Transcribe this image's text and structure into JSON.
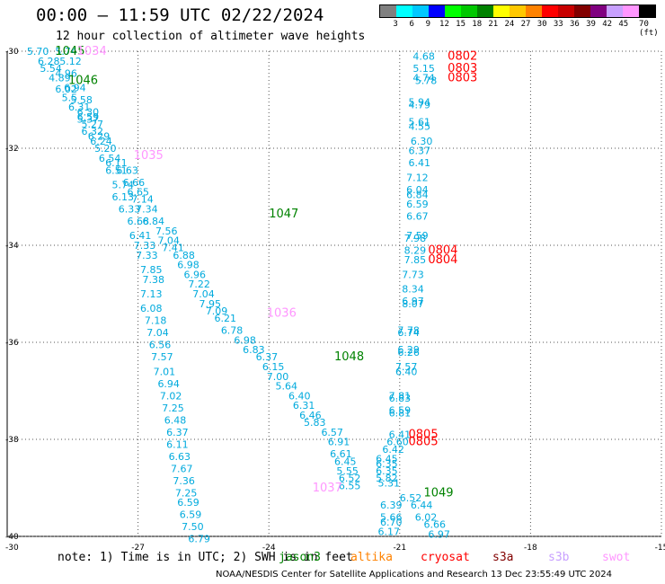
{
  "title": "00:00 – 11:59 UTC 02/22/2024",
  "subtitle": "12 hour collection of altimeter wave heights",
  "colorbar": {
    "colors": [
      "#808080",
      "#00ffff",
      "#00c8ff",
      "#0000ff",
      "#00ff00",
      "#00c800",
      "#008200",
      "#ffff00",
      "#ffc800",
      "#ff8200",
      "#ff0000",
      "#c80000",
      "#820000",
      "#800080",
      "#c8a0ff",
      "#ff96ff",
      "#000000"
    ],
    "labels": [
      "3",
      "6",
      "9",
      "12",
      "15",
      "18",
      "21",
      "24",
      "27",
      "30",
      "33",
      "36",
      "39",
      "42",
      "45",
      "70 (ft)"
    ]
  },
  "axes": {
    "x_ticks": [
      "-27",
      "-24",
      "-21",
      "-18",
      "-15"
    ],
    "y_ticks": [
      "-30",
      "-32",
      "-34",
      "-36",
      "-38",
      "-40"
    ],
    "corner_x": "-30",
    "corner_y": "-40",
    "x_range": [
      -30,
      -15
    ],
    "y_range": [
      -40,
      -30
    ]
  },
  "tracks": [
    {
      "mission": "jason3",
      "color": "#00aadd",
      "points": [
        {
          "lon": -29.55,
          "lat": -30.0,
          "v": "5.70"
        },
        {
          "lon": -28.9,
          "lat": -30.0,
          "v": "5.74"
        },
        {
          "lon": -29.3,
          "lat": -30.2,
          "v": "6.28"
        },
        {
          "lon": -28.8,
          "lat": -30.2,
          "v": "5.12"
        },
        {
          "lon": -29.25,
          "lat": -30.35,
          "v": "5.54"
        },
        {
          "lon": -28.9,
          "lat": -30.45,
          "v": "4.96"
        },
        {
          "lon": -29.05,
          "lat": -30.55,
          "v": "4.89"
        },
        {
          "lon": -28.7,
          "lat": -30.75,
          "v": "6.94"
        },
        {
          "lon": -28.9,
          "lat": -30.78,
          "v": "6.02"
        },
        {
          "lon": -28.75,
          "lat": -30.95,
          "v": "5.5"
        },
        {
          "lon": -28.55,
          "lat": -31.0,
          "v": "5.58"
        },
        {
          "lon": -28.6,
          "lat": -31.15,
          "v": "6.31"
        },
        {
          "lon": -28.4,
          "lat": -31.25,
          "v": "6.30"
        },
        {
          "lon": -28.4,
          "lat": -31.35,
          "v": "6.59"
        },
        {
          "lon": -28.4,
          "lat": -31.4,
          "v": "5.37"
        },
        {
          "lon": -28.3,
          "lat": -31.5,
          "v": "5.27"
        },
        {
          "lon": -28.3,
          "lat": -31.65,
          "v": "6.32"
        },
        {
          "lon": -28.15,
          "lat": -31.75,
          "v": "6.29"
        },
        {
          "lon": -28.1,
          "lat": -31.85,
          "v": "6.24"
        },
        {
          "lon": -28.0,
          "lat": -32.0,
          "v": "5.20"
        },
        {
          "lon": -27.9,
          "lat": -32.2,
          "v": "6.54"
        },
        {
          "lon": -27.75,
          "lat": -32.3,
          "v": "6.11"
        },
        {
          "lon": -27.75,
          "lat": -32.45,
          "v": "6.51"
        },
        {
          "lon": -27.5,
          "lat": -32.45,
          "v": "6.63"
        },
        {
          "lon": -27.35,
          "lat": -32.7,
          "v": "6.66"
        },
        {
          "lon": -27.6,
          "lat": -32.75,
          "v": "5.74"
        },
        {
          "lon": -27.25,
          "lat": -32.9,
          "v": "6.65"
        },
        {
          "lon": -27.6,
          "lat": -33.0,
          "v": "6.13"
        },
        {
          "lon": -27.15,
          "lat": -33.05,
          "v": "7.14"
        },
        {
          "lon": -27.05,
          "lat": -33.25,
          "v": "7.34"
        },
        {
          "lon": -27.45,
          "lat": -33.25,
          "v": "6.33"
        },
        {
          "lon": -27.25,
          "lat": -33.5,
          "v": "6.68"
        },
        {
          "lon": -26.9,
          "lat": -33.5,
          "v": "6.84"
        },
        {
          "lon": -26.6,
          "lat": -33.7,
          "v": "7.56"
        },
        {
          "lon": -27.2,
          "lat": -33.8,
          "v": "6.41"
        },
        {
          "lon": -26.55,
          "lat": -33.9,
          "v": "7.04"
        },
        {
          "lon": -27.1,
          "lat": -34.0,
          "v": "7.33"
        },
        {
          "lon": -26.45,
          "lat": -34.05,
          "v": "7.41"
        },
        {
          "lon": -27.05,
          "lat": -34.2,
          "v": "7.33"
        },
        {
          "lon": -26.2,
          "lat": -34.2,
          "v": "6.88"
        },
        {
          "lon": -26.95,
          "lat": -34.5,
          "v": "7.85"
        },
        {
          "lon": -26.1,
          "lat": -34.4,
          "v": "6.98"
        },
        {
          "lon": -25.95,
          "lat": -34.6,
          "v": "6.96"
        },
        {
          "lon": -26.9,
          "lat": -34.7,
          "v": "7.38"
        },
        {
          "lon": -25.85,
          "lat": -34.8,
          "v": "7.22"
        },
        {
          "lon": -26.95,
          "lat": -35.0,
          "v": "7.13"
        },
        {
          "lon": -25.75,
          "lat": -35.0,
          "v": "7.04"
        },
        {
          "lon": -25.6,
          "lat": -35.2,
          "v": "7.95"
        },
        {
          "lon": -26.95,
          "lat": -35.3,
          "v": "6.08"
        },
        {
          "lon": -25.45,
          "lat": -35.35,
          "v": "7.09"
        },
        {
          "lon": -25.25,
          "lat": -35.5,
          "v": "6.21"
        },
        {
          "lon": -26.85,
          "lat": -35.55,
          "v": "7.18"
        },
        {
          "lon": -25.1,
          "lat": -35.75,
          "v": "6.78"
        },
        {
          "lon": -26.8,
          "lat": -35.8,
          "v": "7.04"
        },
        {
          "lon": -24.8,
          "lat": -35.95,
          "v": "6.98"
        },
        {
          "lon": -26.75,
          "lat": -36.05,
          "v": "6.56"
        },
        {
          "lon": -24.6,
          "lat": -36.15,
          "v": "6.83"
        },
        {
          "lon": -26.7,
          "lat": -36.3,
          "v": "7.57"
        },
        {
          "lon": -24.3,
          "lat": -36.3,
          "v": "6.37"
        },
        {
          "lon": -26.65,
          "lat": -36.6,
          "v": "7.01"
        },
        {
          "lon": -24.15,
          "lat": -36.5,
          "v": "6.15"
        },
        {
          "lon": -24.05,
          "lat": -36.7,
          "v": "7.00"
        },
        {
          "lon": -26.55,
          "lat": -36.85,
          "v": "6.94"
        },
        {
          "lon": -23.85,
          "lat": -36.9,
          "v": "5.64"
        },
        {
          "lon": -26.5,
          "lat": -37.1,
          "v": "7.02"
        },
        {
          "lon": -23.55,
          "lat": -37.1,
          "v": "6.40"
        },
        {
          "lon": -23.45,
          "lat": -37.3,
          "v": "6.31"
        },
        {
          "lon": -26.45,
          "lat": -37.35,
          "v": "7.25"
        },
        {
          "lon": -23.3,
          "lat": -37.5,
          "v": "6.46"
        },
        {
          "lon": -26.4,
          "lat": -37.6,
          "v": "6.48"
        },
        {
          "lon": -23.2,
          "lat": -37.65,
          "v": "5.83"
        },
        {
          "lon": -26.35,
          "lat": -37.85,
          "v": "6.37"
        },
        {
          "lon": -22.8,
          "lat": -37.85,
          "v": "6.57"
        },
        {
          "lon": -26.35,
          "lat": -38.1,
          "v": "6.11"
        },
        {
          "lon": -22.65,
          "lat": -38.05,
          "v": "6.91"
        },
        {
          "lon": -26.3,
          "lat": -38.35,
          "v": "6.63"
        },
        {
          "lon": -22.6,
          "lat": -38.3,
          "v": "6.61"
        },
        {
          "lon": -26.25,
          "lat": -38.6,
          "v": "7.67"
        },
        {
          "lon": -22.5,
          "lat": -38.45,
          "v": "6.45"
        },
        {
          "lon": -22.45,
          "lat": -38.65,
          "v": "5.55"
        },
        {
          "lon": -26.2,
          "lat": -38.85,
          "v": "7.36"
        },
        {
          "lon": -22.4,
          "lat": -38.8,
          "v": "6.52"
        },
        {
          "lon": -22.4,
          "lat": -38.95,
          "v": "6.55"
        },
        {
          "lon": -26.15,
          "lat": -39.1,
          "v": "7.25"
        },
        {
          "lon": -26.1,
          "lat": -39.3,
          "v": "6.59"
        },
        {
          "lon": -26.05,
          "lat": -39.55,
          "v": "6.59"
        },
        {
          "lon": -26.0,
          "lat": -39.8,
          "v": "7.50"
        },
        {
          "lon": -25.85,
          "lat": -40.05,
          "v": "6.79"
        }
      ]
    },
    {
      "mission": "jason3",
      "color": "#00aadd",
      "points": [
        {
          "lon": -20.7,
          "lat": -30.1,
          "v": "4.68"
        },
        {
          "lon": -20.7,
          "lat": -30.35,
          "v": "5.15"
        },
        {
          "lon": -20.7,
          "lat": -30.55,
          "v": "4.74"
        },
        {
          "lon": -20.65,
          "lat": -30.6,
          "v": "5.78"
        },
        {
          "lon": -20.8,
          "lat": -31.05,
          "v": "5.94"
        },
        {
          "lon": -20.8,
          "lat": -31.1,
          "v": "4.79"
        },
        {
          "lon": -20.8,
          "lat": -31.45,
          "v": "5.61"
        },
        {
          "lon": -20.8,
          "lat": -31.55,
          "v": "4.55"
        },
        {
          "lon": -20.75,
          "lat": -31.85,
          "v": "6.30"
        },
        {
          "lon": -20.8,
          "lat": -32.05,
          "v": "6.37"
        },
        {
          "lon": -20.8,
          "lat": -32.3,
          "v": "6.41"
        },
        {
          "lon": -20.85,
          "lat": -32.6,
          "v": "7.12"
        },
        {
          "lon": -20.85,
          "lat": -32.85,
          "v": "6.04"
        },
        {
          "lon": -20.85,
          "lat": -32.95,
          "v": "6.84"
        },
        {
          "lon": -20.85,
          "lat": -33.15,
          "v": "6.59"
        },
        {
          "lon": -20.85,
          "lat": -33.4,
          "v": "6.67"
        },
        {
          "lon": -20.85,
          "lat": -33.8,
          "v": "7.59"
        },
        {
          "lon": -20.9,
          "lat": -33.85,
          "v": "7.98"
        },
        {
          "lon": -20.9,
          "lat": -34.1,
          "v": "8.29"
        },
        {
          "lon": -20.9,
          "lat": -34.3,
          "v": "7.85"
        },
        {
          "lon": -20.95,
          "lat": -34.6,
          "v": "7.73"
        },
        {
          "lon": -20.95,
          "lat": -34.9,
          "v": "8.34"
        },
        {
          "lon": -20.95,
          "lat": -35.15,
          "v": "6.97"
        },
        {
          "lon": -20.95,
          "lat": -35.2,
          "v": "8.07"
        },
        {
          "lon": -21.05,
          "lat": -35.75,
          "v": "7.78"
        },
        {
          "lon": -21.05,
          "lat": -35.8,
          "v": "6.74"
        },
        {
          "lon": -21.05,
          "lat": -36.15,
          "v": "6.29"
        },
        {
          "lon": -21.05,
          "lat": -36.2,
          "v": "6.26"
        },
        {
          "lon": -21.1,
          "lat": -36.5,
          "v": "7.57"
        },
        {
          "lon": -21.1,
          "lat": -36.6,
          "v": "6.40"
        },
        {
          "lon": -21.25,
          "lat": -37.1,
          "v": "7.81"
        },
        {
          "lon": -21.25,
          "lat": -37.15,
          "v": "6.83"
        },
        {
          "lon": -21.25,
          "lat": -37.4,
          "v": "6.59"
        },
        {
          "lon": -21.25,
          "lat": -37.45,
          "v": "6.81"
        },
        {
          "lon": -21.25,
          "lat": -37.9,
          "v": "6.41"
        },
        {
          "lon": -21.3,
          "lat": -38.05,
          "v": "6.60"
        },
        {
          "lon": -21.4,
          "lat": -38.2,
          "v": "6.42"
        },
        {
          "lon": -21.55,
          "lat": -38.4,
          "v": "6.45"
        },
        {
          "lon": -21.55,
          "lat": -38.5,
          "v": "6.35"
        },
        {
          "lon": -21.55,
          "lat": -38.65,
          "v": "6.35"
        },
        {
          "lon": -21.55,
          "lat": -38.8,
          "v": "5.82"
        },
        {
          "lon": -21.5,
          "lat": -38.9,
          "v": "5.31"
        },
        {
          "lon": -21.0,
          "lat": -39.2,
          "v": "6.52"
        },
        {
          "lon": -21.45,
          "lat": -39.35,
          "v": "6.39"
        },
        {
          "lon": -20.75,
          "lat": -39.35,
          "v": "6.44"
        },
        {
          "lon": -21.45,
          "lat": -39.6,
          "v": "5.66"
        },
        {
          "lon": -20.65,
          "lat": -39.6,
          "v": "6.02"
        },
        {
          "lon": -21.45,
          "lat": -39.7,
          "v": "6.70"
        },
        {
          "lon": -20.45,
          "lat": -39.75,
          "v": "6.66"
        },
        {
          "lon": -21.5,
          "lat": -39.9,
          "v": "6.17"
        },
        {
          "lon": -20.35,
          "lat": -39.95,
          "v": "6.97"
        }
      ]
    }
  ],
  "time_labels": [
    {
      "text": "1045",
      "lon": -28.9,
      "lat": -30.0,
      "color": "#008200"
    },
    {
      "text": "1034",
      "lon": -28.4,
      "lat": -30.0,
      "color": "#ff96ff"
    },
    {
      "text": "1046",
      "lon": -28.6,
      "lat": -30.6,
      "color": "#008200"
    },
    {
      "text": "1035",
      "lon": -27.1,
      "lat": -32.15,
      "color": "#ff96ff"
    },
    {
      "text": "1047",
      "lon": -24.0,
      "lat": -33.35,
      "color": "#008200"
    },
    {
      "text": "1036",
      "lon": -24.05,
      "lat": -35.4,
      "color": "#ff96ff"
    },
    {
      "text": "1048",
      "lon": -22.5,
      "lat": -36.3,
      "color": "#008200"
    },
    {
      "text": "1037",
      "lon": -23.0,
      "lat": -39.0,
      "color": "#ff96ff"
    },
    {
      "text": "1049",
      "lon": -20.45,
      "lat": -39.1,
      "color": "#008200"
    },
    {
      "text": "0802",
      "lon": -19.9,
      "lat": -30.1,
      "color": "#ff0000"
    },
    {
      "text": "0803",
      "lon": -19.9,
      "lat": -30.35,
      "color": "#ff0000"
    },
    {
      "text": "0803",
      "lon": -19.9,
      "lat": -30.55,
      "color": "#ff0000"
    },
    {
      "text": "0804",
      "lon": -20.35,
      "lat": -34.1,
      "color": "#ff0000"
    },
    {
      "text": "0804",
      "lon": -20.35,
      "lat": -34.3,
      "color": "#ff0000"
    },
    {
      "text": "0805",
      "lon": -20.8,
      "lat": -37.9,
      "color": "#ff0000"
    },
    {
      "text": "0805",
      "lon": -20.8,
      "lat": -38.05,
      "color": "#ff0000"
    }
  ],
  "note": "note: 1) Time is in UTC; 2) SWH is in feet",
  "missions": [
    {
      "name": "jason3",
      "color": "#008200"
    },
    {
      "name": "altika",
      "color": "#ff8200"
    },
    {
      "name": "cryosat",
      "color": "#ff0000"
    },
    {
      "name": "s3a",
      "color": "#820000"
    },
    {
      "name": "s3b",
      "color": "#c8a0ff"
    },
    {
      "name": "swot",
      "color": "#ff96ff"
    }
  ],
  "footer": "NOAA/NESDIS Center for Satellite Applications and Research    13 Dec 23:55:49 UTC 2024"
}
